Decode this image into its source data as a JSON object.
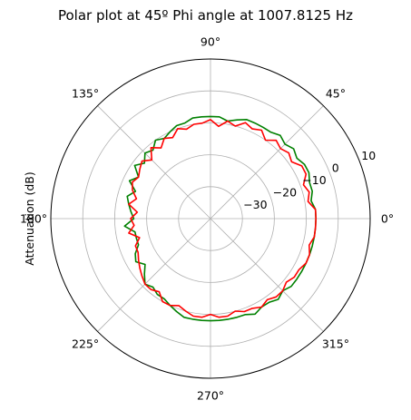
{
  "chart_data": {
    "type": "line",
    "projection": "polar",
    "title": "Polar plot at 45º Phi angle at 1007.8125 Hz",
    "ylabel": "Attenuation (dB)",
    "angle_unit": "degrees",
    "rlim": [
      -40,
      10
    ],
    "r_ticks": [
      -30,
      -20,
      -10,
      0,
      10
    ],
    "r_tick_labels": [
      "−30",
      "−20",
      "−10",
      "0",
      "10"
    ],
    "theta_ticks": [
      0,
      45,
      90,
      135,
      180,
      225,
      270,
      315
    ],
    "theta_tick_labels": [
      "0°",
      "45°",
      "90°",
      "135°",
      "180°",
      "225°",
      "270°",
      "315°"
    ],
    "grid": true,
    "series": [
      {
        "color": "#008000",
        "theta": [
          0,
          5,
          10,
          15,
          20,
          25,
          30,
          35,
          40,
          45,
          50,
          55,
          60,
          65,
          70,
          75,
          80,
          85,
          90,
          95,
          100,
          105,
          110,
          115,
          120,
          125,
          130,
          135,
          140,
          145,
          150,
          155,
          160,
          165,
          170,
          175,
          180,
          185,
          190,
          195,
          200,
          205,
          210,
          215,
          220,
          225,
          230,
          235,
          240,
          245,
          250,
          255,
          260,
          265,
          270,
          275,
          280,
          285,
          290,
          295,
          300,
          305,
          310,
          315,
          320,
          325,
          330,
          335,
          340,
          345,
          350,
          355,
          360
        ],
        "r": [
          -7,
          -7,
          -8,
          -7,
          -7,
          -6,
          -6,
          -7,
          -6,
          -7,
          -6,
          -7,
          -7,
          -7,
          -7,
          -8,
          -9,
          -8,
          -8,
          -8,
          -8,
          -9,
          -9,
          -10,
          -11,
          -10,
          -12,
          -11,
          -13,
          -11,
          -14,
          -12,
          -15,
          -13,
          -14,
          -15,
          -16,
          -13,
          -16,
          -16,
          -16,
          -14,
          -13,
          -15,
          -13,
          -11,
          -12,
          -11,
          -11,
          -10,
          -9,
          -8,
          -8,
          -8,
          -8,
          -8,
          -8,
          -8,
          -8,
          -7,
          -8,
          -8,
          -7,
          -8,
          -7,
          -7,
          -7,
          -7,
          -7,
          -7,
          -7,
          -7,
          -7
        ]
      },
      {
        "color": "#ff0000",
        "theta": [
          0,
          5,
          10,
          15,
          20,
          25,
          30,
          35,
          40,
          45,
          50,
          55,
          60,
          65,
          70,
          75,
          80,
          85,
          90,
          95,
          100,
          105,
          110,
          115,
          120,
          125,
          130,
          135,
          140,
          145,
          150,
          155,
          160,
          165,
          170,
          175,
          180,
          185,
          190,
          195,
          200,
          205,
          210,
          215,
          220,
          225,
          230,
          235,
          240,
          245,
          250,
          255,
          260,
          265,
          270,
          275,
          280,
          285,
          290,
          295,
          300,
          305,
          310,
          315,
          320,
          325,
          330,
          335,
          340,
          345,
          350,
          355,
          360
        ],
        "r": [
          -7,
          -7,
          -9,
          -8,
          -9,
          -7,
          -7,
          -9,
          -8,
          -9,
          -8,
          -10,
          -8,
          -9,
          -8,
          -10,
          -9,
          -11,
          -9,
          -10,
          -10,
          -11,
          -10,
          -12,
          -11,
          -13,
          -11,
          -14,
          -12,
          -13,
          -14,
          -13,
          -14,
          -16,
          -14,
          -17,
          -15,
          -16,
          -14,
          -17,
          -15,
          -15,
          -14,
          -13,
          -12,
          -11,
          -11,
          -12,
          -10,
          -10,
          -11,
          -10,
          -9,
          -9,
          -10,
          -9,
          -9,
          -10,
          -9,
          -9,
          -8,
          -9,
          -8,
          -8,
          -9,
          -8,
          -8,
          -7,
          -7,
          -8,
          -7,
          -7,
          -7
        ]
      }
    ]
  }
}
